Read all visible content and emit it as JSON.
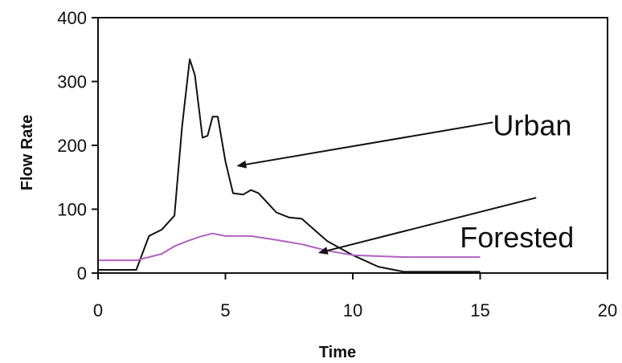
{
  "chart_data": {
    "type": "line",
    "xlabel": "Time",
    "ylabel": "Flow Rate",
    "xlim": [
      0,
      20
    ],
    "ylim": [
      0,
      400
    ],
    "xticks": [
      0,
      5,
      10,
      15,
      20
    ],
    "yticks": [
      0,
      100,
      200,
      300,
      400
    ],
    "grid": false,
    "legend": "none",
    "series": [
      {
        "name": "Urban",
        "color": "#111111",
        "points": [
          [
            0,
            5
          ],
          [
            1.5,
            5
          ],
          [
            2,
            58
          ],
          [
            2.5,
            68
          ],
          [
            3,
            90
          ],
          [
            3.3,
            230
          ],
          [
            3.6,
            335
          ],
          [
            3.8,
            310
          ],
          [
            4.1,
            212
          ],
          [
            4.3,
            215
          ],
          [
            4.5,
            245
          ],
          [
            4.7,
            245
          ],
          [
            5,
            175
          ],
          [
            5.3,
            125
          ],
          [
            5.7,
            123
          ],
          [
            6,
            130
          ],
          [
            6.3,
            125
          ],
          [
            7,
            95
          ],
          [
            7.5,
            87
          ],
          [
            8,
            85
          ],
          [
            9,
            50
          ],
          [
            10,
            28
          ],
          [
            11,
            10
          ],
          [
            12,
            2
          ],
          [
            15,
            2
          ]
        ]
      },
      {
        "name": "Forested",
        "color": "#b060c0",
        "points": [
          [
            0,
            20
          ],
          [
            1.5,
            20
          ],
          [
            2,
            25
          ],
          [
            2.5,
            30
          ],
          [
            3,
            42
          ],
          [
            3.5,
            50
          ],
          [
            4,
            57
          ],
          [
            4.5,
            62
          ],
          [
            5,
            58
          ],
          [
            5.5,
            58
          ],
          [
            6,
            58
          ],
          [
            7,
            52
          ],
          [
            8,
            45
          ],
          [
            9,
            35
          ],
          [
            10,
            28
          ],
          [
            12,
            25
          ],
          [
            15,
            25
          ]
        ]
      }
    ],
    "annotations": [
      {
        "text": "Urban",
        "target": [
          5.5,
          168
        ],
        "tail": [
          15.5,
          236
        ]
      },
      {
        "text": "Forested",
        "target": [
          8.7,
          32
        ],
        "tail": [
          17.2,
          118
        ]
      }
    ]
  }
}
